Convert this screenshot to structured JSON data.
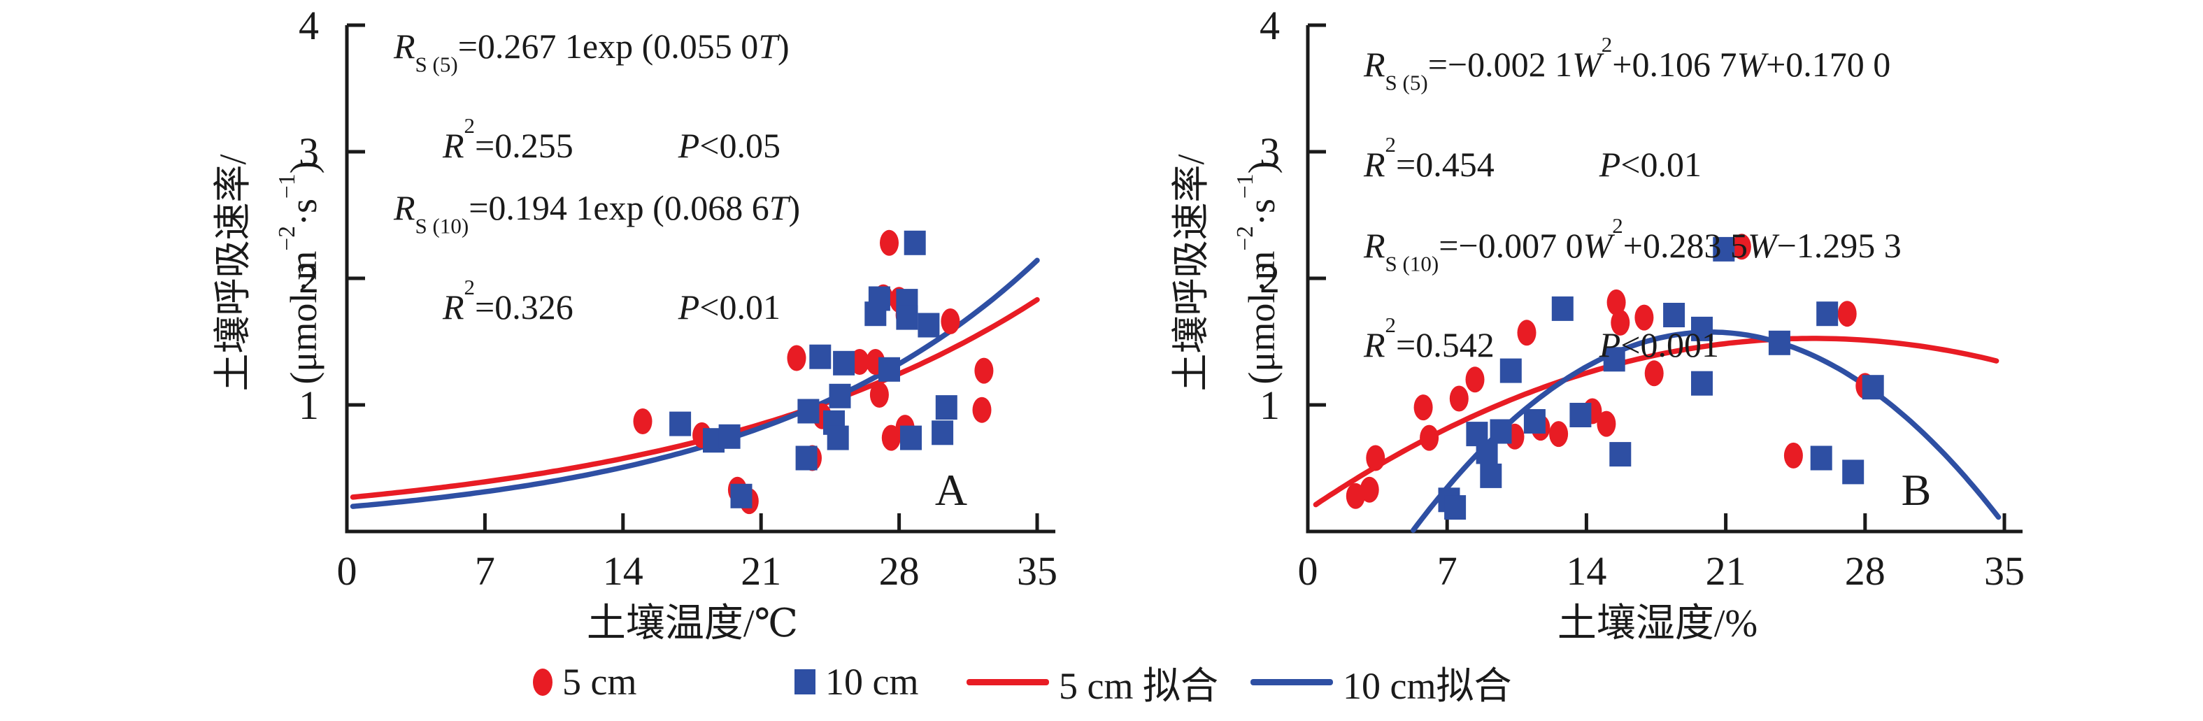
{
  "colors": {
    "red": "#e81c24",
    "blue": "#2e4fa3",
    "axis": "#1a1a1a"
  },
  "chart_data": {
    "type": "scatter",
    "charts": [
      {
        "panel_letter": "A",
        "x_title": "土壤温度/℃",
        "y_title_line1": "土壤呼吸速率/",
        "y_title_line2_segments": [
          {
            "t": "(μmol·m"
          },
          {
            "t": "−2",
            "sup": 1
          },
          {
            "t": "·s"
          },
          {
            "t": "−1",
            "sup": 1
          },
          {
            "t": ")"
          }
        ],
        "xlim": [
          0,
          35
        ],
        "ylim": [
          0,
          4
        ],
        "x_ticks": [
          0,
          7,
          14,
          21,
          28,
          35
        ],
        "y_ticks": [
          1,
          2,
          3,
          4
        ],
        "grid": false,
        "equations": [
          {
            "indent": false,
            "segments": [
              {
                "t": "R",
                "i": 1
              },
              {
                "t": "S (5)",
                "sub": 1
              },
              {
                "t": "=0.267 1exp (0.055 0"
              },
              {
                "t": "T",
                "i": 1
              },
              {
                "t": ")"
              }
            ]
          },
          {
            "indent": true,
            "segments": [
              {
                "t": "R",
                "i": 1
              },
              {
                "t": "2",
                "sup": 1
              },
              {
                "t": "=0.255"
              },
              {
                "gap": 1
              },
              {
                "t": "P",
                "i": 1
              },
              {
                "t": "<0.05"
              }
            ]
          },
          {
            "indent": false,
            "segments": [
              {
                "t": "R",
                "i": 1
              },
              {
                "t": "S (10)",
                "sub": 1
              },
              {
                "t": "=0.194 1exp (0.068 6"
              },
              {
                "t": "T",
                "i": 1
              },
              {
                "t": ")"
              }
            ]
          },
          {
            "indent": true,
            "segments": [
              {
                "t": "R",
                "i": 1
              },
              {
                "t": "2",
                "sup": 1
              },
              {
                "t": "=0.326"
              },
              {
                "gap": 1
              },
              {
                "t": "P",
                "i": 1
              },
              {
                "t": "<0.01"
              }
            ]
          }
        ],
        "series": [
          {
            "name": "5 cm",
            "marker": "circle",
            "color": "red",
            "points": [
              [
                15.0,
                0.87
              ],
              [
                18.0,
                0.76
              ],
              [
                19.8,
                0.33
              ],
              [
                20.4,
                0.24
              ],
              [
                22.8,
                1.37
              ],
              [
                23.6,
                0.58
              ],
              [
                24.1,
                0.91
              ],
              [
                26.0,
                1.34
              ],
              [
                26.8,
                1.34
              ],
              [
                27.0,
                1.08
              ],
              [
                27.2,
                1.85
              ],
              [
                27.5,
                2.28
              ],
              [
                27.6,
                0.74
              ],
              [
                28.0,
                1.83
              ],
              [
                28.3,
                0.82
              ],
              [
                28.3,
                1.71
              ],
              [
                30.6,
                1.66
              ],
              [
                32.2,
                0.96
              ],
              [
                32.3,
                1.27
              ]
            ]
          },
          {
            "name": "10 cm",
            "marker": "square",
            "color": "blue",
            "points": [
              [
                16.9,
                0.85
              ],
              [
                18.6,
                0.72
              ],
              [
                19.4,
                0.75
              ],
              [
                20.0,
                0.28
              ],
              [
                23.3,
                0.58
              ],
              [
                23.4,
                0.95
              ],
              [
                24.0,
                1.38
              ],
              [
                24.7,
                0.86
              ],
              [
                24.9,
                0.74
              ],
              [
                25.0,
                1.07
              ],
              [
                25.2,
                1.33
              ],
              [
                26.8,
                1.72
              ],
              [
                27.0,
                1.84
              ],
              [
                27.5,
                1.28
              ],
              [
                28.4,
                1.82
              ],
              [
                28.4,
                1.69
              ],
              [
                28.6,
                0.74
              ],
              [
                28.8,
                2.28
              ],
              [
                29.5,
                1.63
              ],
              [
                30.2,
                0.78
              ],
              [
                30.4,
                0.98
              ]
            ]
          }
        ],
        "curves": [
          {
            "name": "5 cm 拟合",
            "color": "red",
            "type": "exp",
            "a": 0.2671,
            "b": 0.055,
            "domain": [
              0.3,
              35
            ]
          },
          {
            "name": "10 cm拟合",
            "color": "blue",
            "type": "exp",
            "a": 0.1941,
            "b": 0.0686,
            "domain": [
              0.3,
              35
            ]
          }
        ]
      },
      {
        "panel_letter": "B",
        "x_title": "土壤湿度/%",
        "y_title_line1": "土壤呼吸速率/",
        "y_title_line2_segments": [
          {
            "t": "(μmol·m"
          },
          {
            "t": "−2",
            "sup": 1
          },
          {
            "t": "·s"
          },
          {
            "t": "−1",
            "sup": 1
          },
          {
            "t": ")"
          }
        ],
        "xlim": [
          0,
          35
        ],
        "ylim": [
          0,
          4
        ],
        "x_ticks": [
          0,
          7,
          14,
          21,
          28,
          35
        ],
        "y_ticks": [
          1,
          2,
          3,
          4
        ],
        "grid": false,
        "equations": [
          {
            "indent": false,
            "segments": [
              {
                "t": "R",
                "i": 1
              },
              {
                "t": "S (5)",
                "sub": 1
              },
              {
                "t": "=−0.002 1"
              },
              {
                "t": "W",
                "i": 1
              },
              {
                "t": "2",
                "sup": 1
              },
              {
                "t": "+0.106 7"
              },
              {
                "t": "W",
                "i": 1
              },
              {
                "t": "+0.170 0"
              }
            ]
          },
          {
            "indent": false,
            "segments": [
              {
                "t": "R",
                "i": 1
              },
              {
                "t": "2",
                "sup": 1
              },
              {
                "t": "=0.454"
              },
              {
                "gap": 1
              },
              {
                "t": "P",
                "i": 1
              },
              {
                "t": "<0.01"
              }
            ]
          },
          {
            "indent": false,
            "segments": [
              {
                "t": "R",
                "i": 1
              },
              {
                "t": "S (10)",
                "sub": 1
              },
              {
                "t": "=−0.007 0"
              },
              {
                "t": "W",
                "i": 1
              },
              {
                "t": "2",
                "sup": 1
              },
              {
                "t": "+0.283 5"
              },
              {
                "t": "W",
                "i": 1
              },
              {
                "t": "−1.295 3"
              }
            ]
          },
          {
            "indent": false,
            "segments": [
              {
                "t": "R",
                "i": 1
              },
              {
                "t": "2",
                "sup": 1
              },
              {
                "t": "=0.542"
              },
              {
                "gap": 1
              },
              {
                "t": "P",
                "i": 1
              },
              {
                "t": "<0.001"
              }
            ]
          }
        ],
        "series": [
          {
            "name": "5 cm",
            "marker": "circle",
            "color": "red",
            "points": [
              [
                2.4,
                0.28
              ],
              [
                3.1,
                0.33
              ],
              [
                3.4,
                0.58
              ],
              [
                5.8,
                0.98
              ],
              [
                6.1,
                0.74
              ],
              [
                7.6,
                1.05
              ],
              [
                8.4,
                1.2
              ],
              [
                10.4,
                0.75
              ],
              [
                11.0,
                1.57
              ],
              [
                11.7,
                0.82
              ],
              [
                12.6,
                0.77
              ],
              [
                14.3,
                0.95
              ],
              [
                15.0,
                0.85
              ],
              [
                15.5,
                1.81
              ],
              [
                15.7,
                1.65
              ],
              [
                16.9,
                1.69
              ],
              [
                17.4,
                1.25
              ],
              [
                21.8,
                2.25
              ],
              [
                24.4,
                0.6
              ],
              [
                27.1,
                1.72
              ],
              [
                28.0,
                1.15
              ]
            ]
          },
          {
            "name": "10 cm",
            "marker": "square",
            "color": "blue",
            "points": [
              [
                7.1,
                0.25
              ],
              [
                7.4,
                0.19
              ],
              [
                8.5,
                0.77
              ],
              [
                9.0,
                0.63
              ],
              [
                9.2,
                0.44
              ],
              [
                9.7,
                0.79
              ],
              [
                10.2,
                1.27
              ],
              [
                11.4,
                0.87
              ],
              [
                12.8,
                1.76
              ],
              [
                13.7,
                0.92
              ],
              [
                15.4,
                1.36
              ],
              [
                15.7,
                0.61
              ],
              [
                18.4,
                1.71
              ],
              [
                19.8,
                1.6
              ],
              [
                19.8,
                1.17
              ],
              [
                20.9,
                2.23
              ],
              [
                23.7,
                1.49
              ],
              [
                25.8,
                0.58
              ],
              [
                26.1,
                1.72
              ],
              [
                27.4,
                0.47
              ],
              [
                28.4,
                1.14
              ]
            ]
          }
        ],
        "curves": [
          {
            "name": "5 cm 拟合",
            "color": "red",
            "type": "quad",
            "a": -0.0021,
            "b": 0.1067,
            "c": 0.17,
            "domain": [
              0.4,
              34.6
            ]
          },
          {
            "name": "10 cm拟合",
            "color": "blue",
            "type": "quad",
            "a": -0.007,
            "b": 0.2835,
            "c": -1.2953,
            "domain": [
              5.3,
              34.7
            ]
          }
        ]
      }
    ],
    "legend": {
      "items": [
        {
          "label": "5 cm",
          "marker": "circle",
          "color": "red"
        },
        {
          "label": "10 cm",
          "marker": "square",
          "color": "blue"
        },
        {
          "label": "5 cm 拟合",
          "marker": "line",
          "color": "red"
        },
        {
          "label": "10 cm拟合",
          "marker": "line",
          "color": "blue"
        }
      ]
    }
  }
}
